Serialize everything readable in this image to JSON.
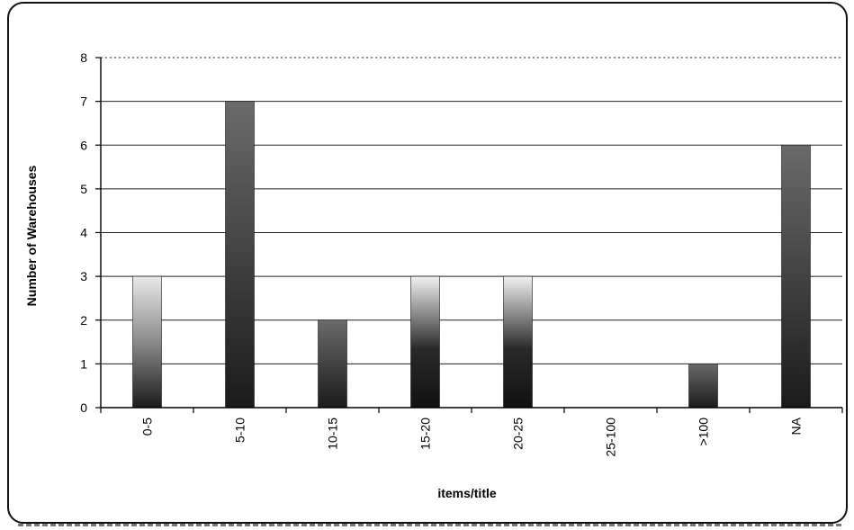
{
  "chart_data": {
    "type": "bar",
    "categories": [
      "0-5",
      "5-10",
      "10-15",
      "15-20",
      "20-25",
      "25-100",
      ">100",
      "NA"
    ],
    "values": [
      3,
      7,
      2,
      3,
      3,
      0,
      1,
      6
    ],
    "xlabel": "items/title",
    "ylabel": "Number of Warehouses",
    "ylim": [
      0,
      8
    ],
    "yticks": [
      "0",
      "1",
      "2",
      "3",
      "4",
      "5",
      "6",
      "7",
      "8"
    ],
    "grid": true,
    "legend": "none"
  },
  "colors": {
    "dark": "#1b1b1b",
    "mid": "#6a6a6a",
    "light": "#e9e9e9",
    "grid": "#222222"
  }
}
